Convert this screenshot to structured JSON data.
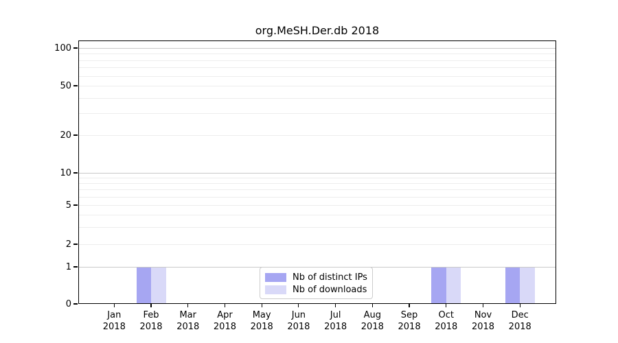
{
  "chart_data": {
    "type": "bar",
    "title": "org.MeSH.Der.db 2018",
    "categories": [
      {
        "month": "Jan",
        "year": "2018"
      },
      {
        "month": "Feb",
        "year": "2018"
      },
      {
        "month": "Mar",
        "year": "2018"
      },
      {
        "month": "Apr",
        "year": "2018"
      },
      {
        "month": "May",
        "year": "2018"
      },
      {
        "month": "Jun",
        "year": "2018"
      },
      {
        "month": "Jul",
        "year": "2018"
      },
      {
        "month": "Aug",
        "year": "2018"
      },
      {
        "month": "Sep",
        "year": "2018"
      },
      {
        "month": "Oct",
        "year": "2018"
      },
      {
        "month": "Nov",
        "year": "2018"
      },
      {
        "month": "Dec",
        "year": "2018"
      }
    ],
    "series": [
      {
        "name": "Nb of distinct IPs",
        "color": "#a6a6f2",
        "values": [
          0,
          1,
          0,
          0,
          0,
          0,
          0,
          0,
          0,
          1,
          0,
          1
        ]
      },
      {
        "name": "Nb of downloads",
        "color": "#d9d9f8",
        "values": [
          0,
          1,
          0,
          0,
          0,
          0,
          0,
          0,
          0,
          1,
          0,
          1
        ]
      }
    ],
    "yscale": "symlog",
    "ylim": [
      0,
      100
    ],
    "yticks": [
      100,
      50,
      20,
      10,
      5,
      2,
      1,
      0
    ],
    "minor_gridlines": [
      3,
      4,
      6,
      7,
      8,
      9,
      30,
      40,
      60,
      70,
      80,
      90
    ],
    "grid": "horizontal",
    "legend_position": "lower center",
    "colors": {
      "major_gridline": "#c9c9c9",
      "minor_gridline": "#ededed",
      "axis": "#000000"
    }
  }
}
